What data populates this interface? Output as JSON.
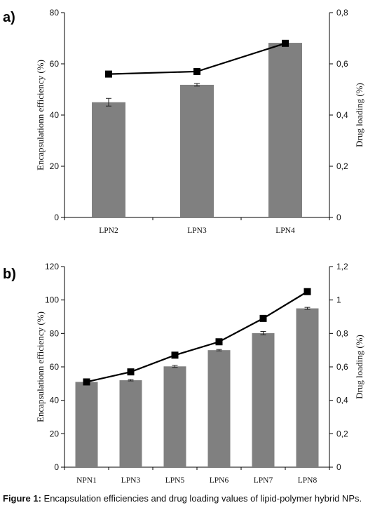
{
  "chart_data": [
    {
      "type": "bar",
      "panel_label": "a)",
      "categories": [
        "LPN2",
        "LPN3",
        "LPN4"
      ],
      "series": [
        {
          "values": [
            45,
            51.8,
            68.2
          ],
          "errors": [
            1.5,
            0.5,
            0
          ],
          "axis": "left"
        },
        {
          "type": "line",
          "values": [
            0.56,
            0.57,
            0.68
          ],
          "axis": "right"
        }
      ],
      "ylabel": "Encapsulationn efficiency (%)",
      "y2label": "Drug loading (%)",
      "ylim": [
        0,
        80
      ],
      "y2lim": [
        0,
        0.8
      ],
      "yticks": [
        "0",
        "20",
        "40",
        "60",
        "80"
      ],
      "y2ticks": [
        "0",
        "0,2",
        "0,4",
        "0,6",
        "0,8"
      ],
      "colors": {
        "bar": "#808080",
        "line": "#000000"
      }
    },
    {
      "type": "bar",
      "panel_label": "b)",
      "categories": [
        "NPN1",
        "LPN3",
        "LPN5",
        "LPN6",
        "LPN7",
        "LPN8"
      ],
      "series": [
        {
          "values": [
            51,
            52,
            60.3,
            70,
            80.2,
            95
          ],
          "errors": [
            0.4,
            0.4,
            0.6,
            0.4,
            1,
            0.6
          ],
          "axis": "left"
        },
        {
          "type": "line",
          "values": [
            0.51,
            0.57,
            0.67,
            0.75,
            0.89,
            1.05
          ],
          "axis": "right"
        }
      ],
      "ylabel": "Encapsulationn efficiency (%)",
      "y2label": "Drug loading (%)",
      "ylim": [
        0,
        120
      ],
      "y2lim": [
        0,
        1.2
      ],
      "yticks": [
        "0",
        "20",
        "40",
        "60",
        "80",
        "100",
        "120"
      ],
      "y2ticks": [
        "0",
        "0,2",
        "0,4",
        "0,6",
        "0,8",
        "1",
        "1,2"
      ],
      "colors": {
        "bar": "#808080",
        "line": "#000000"
      }
    }
  ],
  "caption": {
    "label": "Figure 1:",
    "text": "Encapsulation efficiencies and drug loading values of lipid-polymer hybrid NPs."
  }
}
